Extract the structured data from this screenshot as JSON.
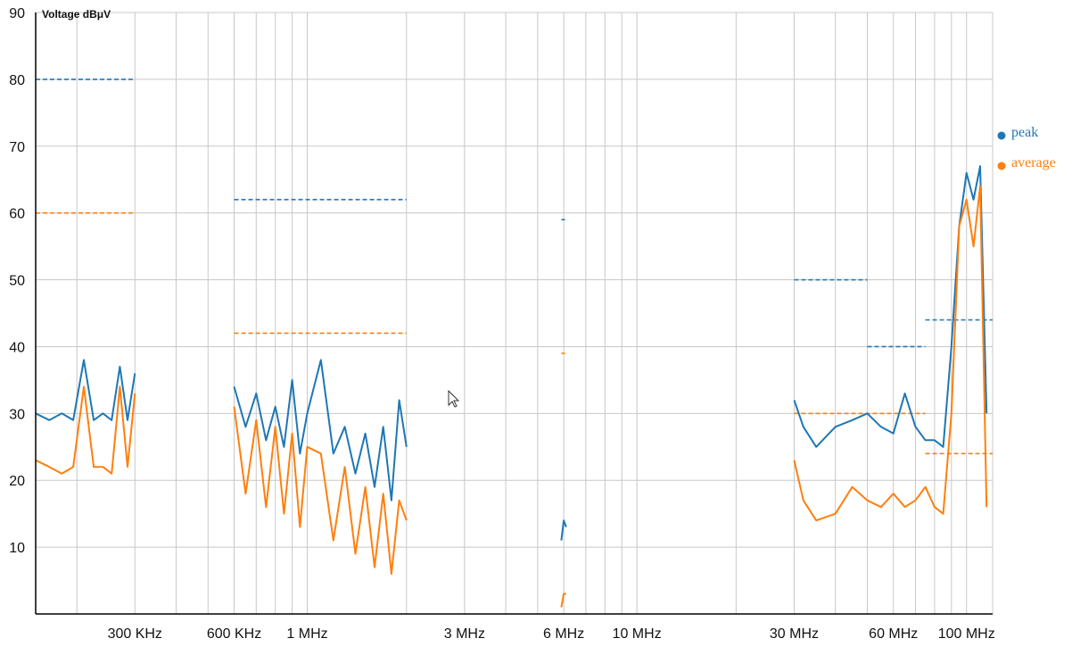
{
  "chart_data": {
    "type": "line",
    "ylabel": "Voltage dBμV",
    "xscale": "log",
    "xlim_hz": [
      150000,
      120000000
    ],
    "ylim": [
      0,
      90
    ],
    "yticks": [
      10,
      20,
      30,
      40,
      50,
      60,
      70,
      80,
      90
    ],
    "xtick_labels": [
      {
        "label": "300 KHz",
        "hz": 300000
      },
      {
        "label": "600 KHz",
        "hz": 600000
      },
      {
        "label": "1 MHz",
        "hz": 1000000
      },
      {
        "label": "3 MHz",
        "hz": 3000000
      },
      {
        "label": "6 MHz",
        "hz": 6000000
      },
      {
        "label": "10 MHz",
        "hz": 10000000
      },
      {
        "label": "30 MHz",
        "hz": 30000000
      },
      {
        "label": "60 MHz",
        "hz": 60000000
      },
      {
        "label": "100 MHz",
        "hz": 100000000
      }
    ],
    "grid": true,
    "legend_position": "right",
    "colors": {
      "peak": "#1f77b4",
      "average": "#ff7f0e",
      "grid": "#c8c8c8",
      "axis": "#000000"
    },
    "series": [
      {
        "name": "peak",
        "segments": [
          {
            "x": [
              150000,
              165000,
              180000,
              195000,
              210000,
              225000,
              240000,
              255000,
              270000,
              285000,
              300000
            ],
            "y": [
              30,
              29,
              30,
              29,
              38,
              29,
              30,
              29,
              37,
              29,
              36
            ]
          },
          {
            "x": [
              600000,
              650000,
              700000,
              750000,
              800000,
              850000,
              900000,
              950000,
              1000000,
              1100000,
              1200000,
              1300000,
              1400000,
              1500000,
              1600000,
              1700000,
              1800000,
              1900000,
              2000000
            ],
            "y": [
              34,
              28,
              33,
              26,
              31,
              25,
              35,
              24,
              30,
              38,
              24,
              28,
              21,
              27,
              19,
              28,
              17,
              32,
              25
            ]
          },
          {
            "x": [
              5900000,
              6000000,
              6100000
            ],
            "y": [
              11,
              14,
              13
            ]
          },
          {
            "x": [
              30000000,
              32000000,
              35000000,
              40000000,
              45000000,
              50000000,
              55000000,
              60000000,
              65000000,
              70000000,
              75000000,
              80000000,
              85000000,
              90000000,
              95000000,
              100000000,
              105000000,
              110000000,
              115000000
            ],
            "y": [
              32,
              28,
              25,
              28,
              29,
              30,
              28,
              27,
              33,
              28,
              26,
              26,
              25,
              40,
              58,
              66,
              62,
              67,
              30
            ]
          }
        ]
      },
      {
        "name": "average",
        "segments": [
          {
            "x": [
              150000,
              165000,
              180000,
              195000,
              210000,
              225000,
              240000,
              255000,
              270000,
              285000,
              300000
            ],
            "y": [
              23,
              22,
              21,
              22,
              34,
              22,
              22,
              21,
              34,
              22,
              33
            ]
          },
          {
            "x": [
              600000,
              650000,
              700000,
              750000,
              800000,
              850000,
              900000,
              950000,
              1000000,
              1100000,
              1200000,
              1300000,
              1400000,
              1500000,
              1600000,
              1700000,
              1800000,
              1900000,
              2000000
            ],
            "y": [
              31,
              18,
              29,
              16,
              28,
              15,
              27,
              13,
              25,
              24,
              11,
              22,
              9,
              19,
              7,
              18,
              6,
              17,
              14
            ]
          },
          {
            "x": [
              5900000,
              6000000,
              6100000
            ],
            "y": [
              1,
              3,
              3
            ]
          },
          {
            "x": [
              30000000,
              32000000,
              35000000,
              40000000,
              45000000,
              50000000,
              55000000,
              60000000,
              65000000,
              70000000,
              75000000,
              80000000,
              85000000,
              90000000,
              95000000,
              100000000,
              105000000,
              110000000,
              115000000
            ],
            "y": [
              23,
              17,
              14,
              15,
              19,
              17,
              16,
              18,
              16,
              17,
              19,
              16,
              15,
              30,
              58,
              62,
              55,
              64,
              16
            ]
          }
        ]
      }
    ],
    "limit_lines": [
      {
        "series": "peak",
        "x": [
          150000,
          300000
        ],
        "y": 80
      },
      {
        "series": "average",
        "x": [
          150000,
          300000
        ],
        "y": 60
      },
      {
        "series": "peak",
        "x": [
          600000,
          2000000
        ],
        "y": 62
      },
      {
        "series": "average",
        "x": [
          600000,
          2000000
        ],
        "y": 42
      },
      {
        "series": "peak",
        "x": [
          5900000,
          6050000
        ],
        "y": 59
      },
      {
        "series": "average",
        "x": [
          5900000,
          6050000
        ],
        "y": 39
      },
      {
        "series": "peak",
        "x": [
          30000000,
          50000000
        ],
        "y": 50
      },
      {
        "series": "average",
        "x": [
          30000000,
          75000000
        ],
        "y": 30
      },
      {
        "series": "peak",
        "x": [
          50000000,
          75000000
        ],
        "y": 40
      },
      {
        "series": "average",
        "x": [
          75000000,
          120000000
        ],
        "y": 24
      },
      {
        "series": "peak",
        "x": [
          75000000,
          120000000
        ],
        "y": 44
      }
    ]
  }
}
